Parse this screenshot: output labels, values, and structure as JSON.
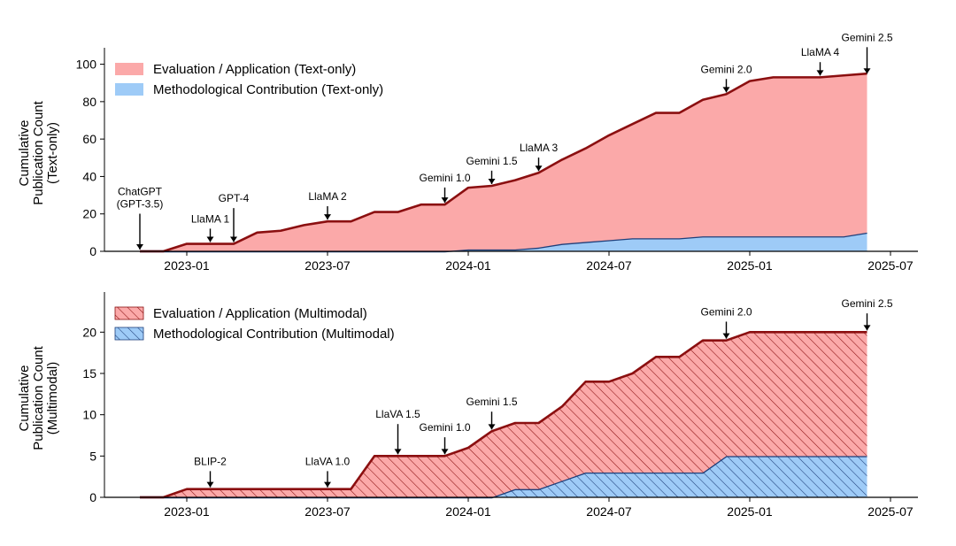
{
  "chart_data": [
    {
      "type": "area",
      "stacked": true,
      "ylabel": [
        "Cumulative",
        "Publication Count",
        "(Text-only)"
      ],
      "ylim": [
        0,
        105
      ],
      "yticks": [
        0,
        20,
        40,
        60,
        80,
        100
      ],
      "x_range": [
        "2022-11",
        "2025-07"
      ],
      "x": [
        "2022-11",
        "2022-12",
        "2023-01",
        "2023-02",
        "2023-03",
        "2023-04",
        "2023-05",
        "2023-06",
        "2023-07",
        "2023-08",
        "2023-09",
        "2023-10",
        "2023-11",
        "2023-12",
        "2024-01",
        "2024-02",
        "2024-03",
        "2024-04",
        "2024-05",
        "2024-06",
        "2024-07",
        "2024-08",
        "2024-09",
        "2024-10",
        "2024-11",
        "2024-12",
        "2025-01",
        "2025-02",
        "2025-03",
        "2025-04",
        "2025-05",
        "2025-06"
      ],
      "xticks": [
        "2023-01",
        "2023-07",
        "2024-01",
        "2024-07",
        "2025-01",
        "2025-07"
      ],
      "grid": false,
      "legend_position": "top-left",
      "series": [
        {
          "name": "Methodological Contribution (Text-only)",
          "color": "#9ecbf7",
          "edge": "#1f3f7a",
          "hatch": false,
          "values": [
            0,
            0,
            0,
            0,
            0,
            0,
            0,
            0,
            0,
            0,
            0,
            0,
            0,
            0,
            1,
            1,
            1,
            2,
            4,
            5,
            6,
            7,
            7,
            7,
            8,
            8,
            8,
            8,
            8,
            8,
            8,
            10
          ]
        },
        {
          "name": "Evaluation / Application (Text-only)",
          "color": "#fba9a9",
          "edge": "#8b0f10",
          "hatch": false,
          "values": [
            0,
            0,
            4,
            4,
            4,
            10,
            11,
            14,
            16,
            16,
            21,
            21,
            25,
            25,
            33,
            34,
            37,
            40,
            45,
            50,
            56,
            61,
            67,
            67,
            73,
            76,
            83,
            85,
            85,
            85,
            86,
            85
          ]
        }
      ],
      "annotations": [
        {
          "label": [
            "ChatGPT",
            "(GPT-3.5)"
          ],
          "x": "2022-11",
          "y": 0,
          "label_y": 22
        },
        {
          "label": [
            "LlaMA 1"
          ],
          "x": "2023-02",
          "y": 4,
          "label_y": 14
        },
        {
          "label": [
            "GPT-4"
          ],
          "x": "2023-03",
          "y": 4,
          "label_y": 25
        },
        {
          "label": [
            "LlaMA 2"
          ],
          "x": "2023-07",
          "y": 16,
          "label_y": 26
        },
        {
          "label": [
            "Gemini 1.0"
          ],
          "x": "2023-12",
          "y": 25,
          "label_y": 36
        },
        {
          "label": [
            "Gemini 1.5"
          ],
          "x": "2024-02",
          "y": 35,
          "label_y": 45
        },
        {
          "label": [
            "LlaMA 3"
          ],
          "x": "2024-04",
          "y": 42,
          "label_y": 52
        },
        {
          "label": [
            "Gemini 2.0"
          ],
          "x": "2024-12",
          "y": 84,
          "label_y": 94
        },
        {
          "label": [
            "LlaMA 4"
          ],
          "x": "2025-04",
          "y": 93,
          "label_y": 103
        },
        {
          "label": [
            "Gemini 2.5"
          ],
          "x": "2025-06",
          "y": 94,
          "label_y": 111
        }
      ]
    },
    {
      "type": "area",
      "stacked": true,
      "ylabel": [
        "Cumulative",
        "Publication Count",
        "(Multimodal)"
      ],
      "ylim": [
        0,
        24
      ],
      "yticks": [
        0,
        5,
        10,
        15,
        20
      ],
      "x_range": [
        "2022-11",
        "2025-07"
      ],
      "x": [
        "2022-11",
        "2022-12",
        "2023-01",
        "2023-02",
        "2023-03",
        "2023-04",
        "2023-05",
        "2023-06",
        "2023-07",
        "2023-08",
        "2023-09",
        "2023-10",
        "2023-11",
        "2023-12",
        "2024-01",
        "2024-02",
        "2024-03",
        "2024-04",
        "2024-05",
        "2024-06",
        "2024-07",
        "2024-08",
        "2024-09",
        "2024-10",
        "2024-11",
        "2024-12",
        "2025-01",
        "2025-02",
        "2025-03",
        "2025-04",
        "2025-05",
        "2025-06"
      ],
      "xticks": [
        "2023-01",
        "2023-07",
        "2024-01",
        "2024-07",
        "2025-01",
        "2025-07"
      ],
      "grid": false,
      "legend_position": "top-left",
      "series": [
        {
          "name": "Methodological Contribution (Multimodal)",
          "color": "#9ecbf7",
          "edge": "#1f3f7a",
          "hatch": true,
          "values": [
            0,
            0,
            0,
            0,
            0,
            0,
            0,
            0,
            0,
            0,
            0,
            0,
            0,
            0,
            0,
            0,
            1,
            1,
            2,
            3,
            3,
            3,
            3,
            3,
            3,
            5,
            5,
            5,
            5,
            5,
            5,
            5
          ]
        },
        {
          "name": "Evaluation / Application (Multimodal)",
          "color": "#fba9a9",
          "edge": "#8b0f10",
          "hatch": true,
          "values": [
            0,
            0,
            1,
            1,
            1,
            1,
            1,
            1,
            1,
            1,
            5,
            5,
            5,
            5,
            6,
            8,
            8,
            8,
            9,
            11,
            11,
            12,
            14,
            14,
            16,
            14,
            15,
            15,
            15,
            15,
            15,
            15
          ]
        }
      ],
      "annotations": [
        {
          "label": [
            "BLIP-2"
          ],
          "x": "2023-02",
          "y": 1,
          "label_y": 3.6
        },
        {
          "label": [
            "LlaVA 1.0"
          ],
          "x": "2023-07",
          "y": 1,
          "label_y": 3.6
        },
        {
          "label": [
            "LlaVA 1.5"
          ],
          "x": "2023-10",
          "y": 5,
          "label_y": 9.3
        },
        {
          "label": [
            "Gemini 1.0"
          ],
          "x": "2023-12",
          "y": 5,
          "label_y": 7.7
        },
        {
          "label": [
            "Gemini 1.5"
          ],
          "x": "2024-02",
          "y": 8,
          "label_y": 10.8
        },
        {
          "label": [
            "Gemini 2.0"
          ],
          "x": "2024-12",
          "y": 19,
          "label_y": 21.7
        },
        {
          "label": [
            "Gemini 2.5"
          ],
          "x": "2025-06",
          "y": 20,
          "label_y": 22.7
        }
      ]
    }
  ]
}
